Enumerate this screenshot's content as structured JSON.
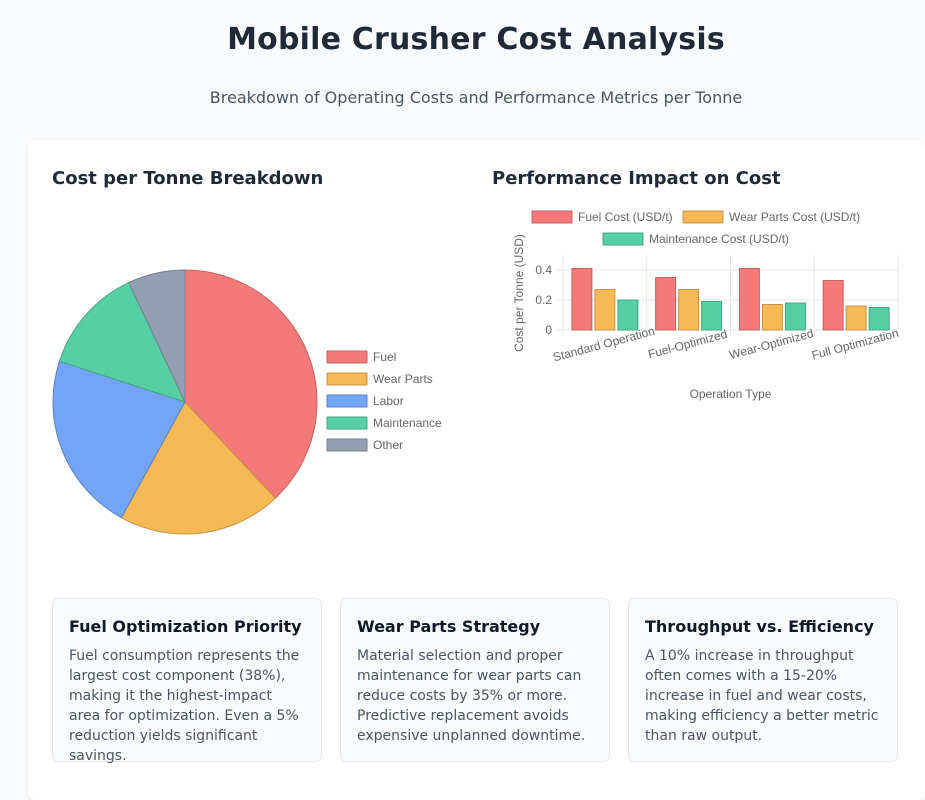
{
  "header": {
    "title": "Mobile Crusher Cost Analysis",
    "subtitle": "Breakdown of Operating Costs and Performance Metrics per Tonne"
  },
  "charts": {
    "pie_title": "Cost per Tonne Breakdown",
    "bar_title": "Performance Impact on Cost"
  },
  "chart_data": [
    {
      "type": "pie",
      "title": "Cost per Tonne Breakdown",
      "labels": [
        "Fuel",
        "Wear Parts",
        "Labor",
        "Maintenance",
        "Other"
      ],
      "values": [
        38,
        20,
        22,
        13,
        7
      ],
      "colors": [
        "#f47a7a",
        "#f7b955",
        "#74a4f5",
        "#56cfa4",
        "#939fb0"
      ],
      "legend": "right"
    },
    {
      "type": "bar",
      "title": "Performance Impact on Cost",
      "categories": [
        "Standard Operation",
        "Fuel-Optimized",
        "Wear-Optimized",
        "Full Optimization"
      ],
      "series": [
        {
          "name": "Fuel Cost (USD/t)",
          "values": [
            0.41,
            0.35,
            0.41,
            0.33
          ],
          "color": "#f47a7a"
        },
        {
          "name": "Wear Parts Cost (USD/t)",
          "values": [
            0.27,
            0.27,
            0.17,
            0.16
          ],
          "color": "#f7b955"
        },
        {
          "name": "Maintenance Cost (USD/t)",
          "values": [
            0.2,
            0.19,
            0.18,
            0.15
          ],
          "color": "#56cfa4"
        }
      ],
      "xlabel": "Operation Type",
      "ylabel": "Cost per Tonne (USD)",
      "ylim": [
        0,
        0.5
      ],
      "yticks": [
        "0",
        "0.2",
        "0.4"
      ],
      "ytick_values": [
        0,
        0.2,
        0.4
      ],
      "grid": true,
      "legend": "top"
    }
  ],
  "cards": [
    {
      "title": "Fuel Optimization Priority",
      "text": "Fuel consumption represents the largest cost component (38%), making it the highest-impact area for optimization. Even a 5% reduction yields significant savings."
    },
    {
      "title": "Wear Parts Strategy",
      "text": "Material selection and proper maintenance for wear parts can reduce costs by 35% or more. Predictive replacement avoids expensive unplanned downtime."
    },
    {
      "title": "Throughput vs. Efficiency",
      "text": "A 10% increase in throughput often comes with a 15-20% increase in fuel and wear costs, making efficiency a better metric than raw output."
    }
  ]
}
